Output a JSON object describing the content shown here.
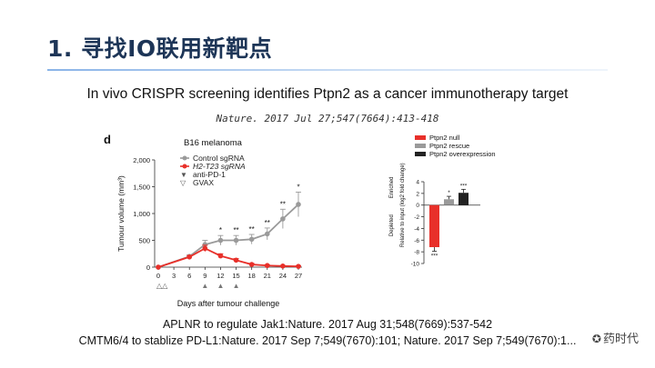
{
  "slide": {
    "title": "1. 寻找IO联用新靶点",
    "subtitle": "In vivo CRISPR screening identifies Ptpn2 as a cancer immunotherapy target",
    "citation": "Nature. 2017 Jul 27;547(7664):413-418",
    "ref1": "APLNR to regulate Jak1:Nature. 2017 Aug 31;548(7669):537-542",
    "ref2": "CMTM6/4 to stablize PD-L1:Nature. 2017 Sep 7;549(7670):101; Nature. 2017 Sep 7;549(7670):1...",
    "watermark": "药时代"
  },
  "colors": {
    "control": "#9a9a9a",
    "knockout": "#e8302a",
    "rescue": "#9a9a9a",
    "overexpression": "#222222",
    "title": "#1d3557"
  },
  "chart_data": [
    {
      "type": "line",
      "panel_label": "d",
      "title": "B16 melanoma",
      "xlabel": "Days after tumour challenge",
      "ylabel": "Tumour volume (mm³)",
      "xlim": [
        0,
        27
      ],
      "ylim": [
        0,
        2000
      ],
      "x_ticks": [
        0,
        3,
        6,
        9,
        12,
        15,
        18,
        21,
        24,
        27
      ],
      "y_ticks": [
        0,
        500,
        1000,
        1500,
        2000
      ],
      "y_tick_labels": [
        "0",
        "500",
        "1,000",
        "1,500",
        "2,000"
      ],
      "series": [
        {
          "name": "Control sgRNA",
          "color": "#9a9a9a",
          "x": [
            0,
            6,
            9,
            12,
            15,
            18,
            21,
            24,
            27
          ],
          "y": [
            0,
            200,
            420,
            500,
            500,
            520,
            620,
            900,
            1170
          ],
          "err": [
            0,
            30,
            80,
            90,
            90,
            90,
            110,
            180,
            230
          ]
        },
        {
          "name": "H2-T23 sgRNA",
          "color": "#e8302a",
          "x": [
            0,
            6,
            9,
            12,
            15,
            18,
            21,
            24,
            27
          ],
          "y": [
            0,
            190,
            350,
            210,
            130,
            50,
            30,
            20,
            15
          ],
          "err": [
            0,
            25,
            60,
            40,
            30,
            20,
            15,
            10,
            10
          ]
        }
      ],
      "significance": [
        {
          "x": 12,
          "label": "*"
        },
        {
          "x": 15,
          "label": "**"
        },
        {
          "x": 18,
          "label": "**"
        },
        {
          "x": 21,
          "label": "**"
        },
        {
          "x": 24,
          "label": "**"
        },
        {
          "x": 27,
          "label": "*"
        }
      ],
      "treatment_legend": [
        {
          "symbol": "▼",
          "label": "anti-PD-1"
        },
        {
          "symbol": "▽",
          "label": "GVAX"
        }
      ],
      "treatment_markers_text": "△△",
      "treatment_days": [
        9,
        12,
        15
      ]
    },
    {
      "type": "bar",
      "ylabel": "Relative to input (log2 fold change)",
      "ylabel_enriched": "Enriched",
      "ylabel_depleted": "Depleted",
      "ylim": [
        -10,
        4
      ],
      "y_ticks": [
        4,
        2,
        0,
        -2,
        -4,
        -6,
        -8,
        -10
      ],
      "categories": [
        "Ptpn2 null",
        "Ptpn2 rescue",
        "Ptpn2 overexpression"
      ],
      "values": [
        -7.2,
        1.0,
        2.1
      ],
      "errors": [
        0.7,
        0.5,
        0.6
      ],
      "significance": [
        "***",
        "*",
        "***"
      ],
      "colors": [
        "#e8302a",
        "#9a9a9a",
        "#222222"
      ]
    }
  ]
}
